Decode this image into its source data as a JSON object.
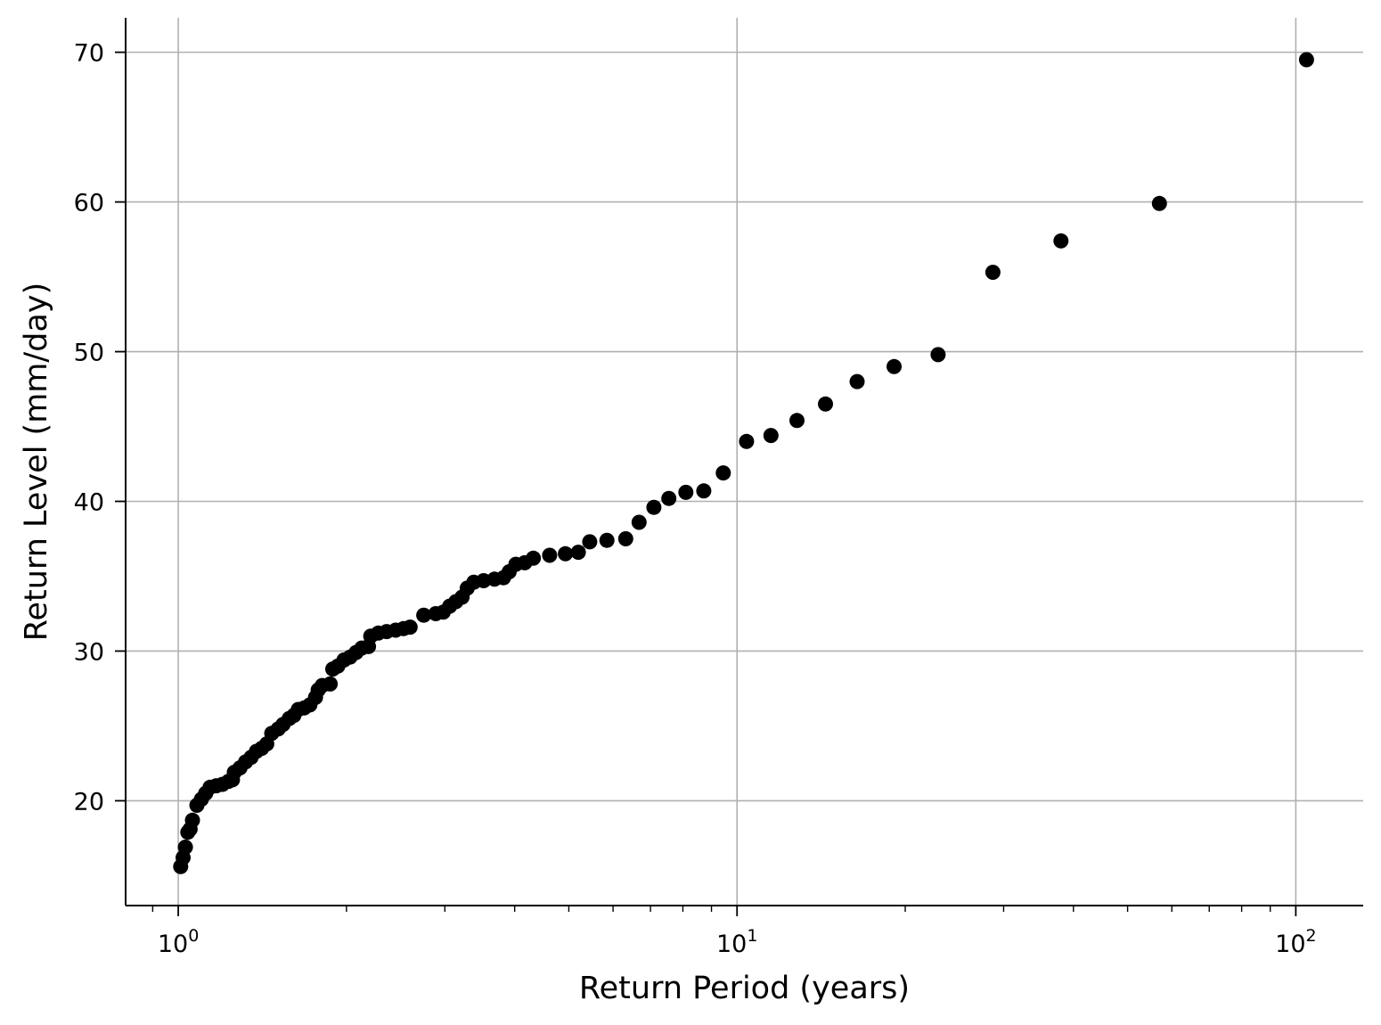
{
  "chart_data": {
    "type": "scatter",
    "xlabel": "Return Period (years)",
    "ylabel": "Return Level (mm/day)",
    "x_scale": "log",
    "xlim": [
      0.805,
      132
    ],
    "ylim": [
      13.0,
      72.3
    ],
    "x_ticks": [
      {
        "value": 1,
        "base": "10",
        "exp": "0"
      },
      {
        "value": 10,
        "base": "10",
        "exp": "1"
      },
      {
        "value": 100,
        "base": "10",
        "exp": "2"
      }
    ],
    "y_ticks": [
      20,
      30,
      40,
      50,
      60,
      70
    ],
    "grid": true,
    "marker_color": "#000000",
    "grid_color": "#b0b0b0",
    "points": [
      {
        "x": 1.01,
        "y": 15.6
      },
      {
        "x": 1.02,
        "y": 16.2
      },
      {
        "x": 1.03,
        "y": 16.9
      },
      {
        "x": 1.04,
        "y": 17.9
      },
      {
        "x": 1.05,
        "y": 18.1
      },
      {
        "x": 1.06,
        "y": 18.7
      },
      {
        "x": 1.08,
        "y": 19.7
      },
      {
        "x": 1.1,
        "y": 20.1
      },
      {
        "x": 1.12,
        "y": 20.5
      },
      {
        "x": 1.14,
        "y": 20.9
      },
      {
        "x": 1.17,
        "y": 21.0
      },
      {
        "x": 1.2,
        "y": 21.1
      },
      {
        "x": 1.23,
        "y": 21.3
      },
      {
        "x": 1.25,
        "y": 21.4
      },
      {
        "x": 1.26,
        "y": 21.9
      },
      {
        "x": 1.29,
        "y": 22.2
      },
      {
        "x": 1.32,
        "y": 22.6
      },
      {
        "x": 1.35,
        "y": 22.9
      },
      {
        "x": 1.38,
        "y": 23.3
      },
      {
        "x": 1.41,
        "y": 23.5
      },
      {
        "x": 1.44,
        "y": 23.8
      },
      {
        "x": 1.47,
        "y": 24.5
      },
      {
        "x": 1.51,
        "y": 24.8
      },
      {
        "x": 1.54,
        "y": 25.1
      },
      {
        "x": 1.58,
        "y": 25.5
      },
      {
        "x": 1.61,
        "y": 25.7
      },
      {
        "x": 1.64,
        "y": 26.1
      },
      {
        "x": 1.68,
        "y": 26.2
      },
      {
        "x": 1.72,
        "y": 26.4
      },
      {
        "x": 1.76,
        "y": 26.9
      },
      {
        "x": 1.78,
        "y": 27.4
      },
      {
        "x": 1.81,
        "y": 27.7
      },
      {
        "x": 1.87,
        "y": 27.8
      },
      {
        "x": 1.89,
        "y": 28.8
      },
      {
        "x": 1.93,
        "y": 29.0
      },
      {
        "x": 1.98,
        "y": 29.4
      },
      {
        "x": 2.03,
        "y": 29.6
      },
      {
        "x": 2.08,
        "y": 29.9
      },
      {
        "x": 2.13,
        "y": 30.2
      },
      {
        "x": 2.19,
        "y": 30.3
      },
      {
        "x": 2.21,
        "y": 31.0
      },
      {
        "x": 2.28,
        "y": 31.2
      },
      {
        "x": 2.36,
        "y": 31.3
      },
      {
        "x": 2.45,
        "y": 31.4
      },
      {
        "x": 2.53,
        "y": 31.5
      },
      {
        "x": 2.6,
        "y": 31.6
      },
      {
        "x": 2.75,
        "y": 32.4
      },
      {
        "x": 2.89,
        "y": 32.5
      },
      {
        "x": 2.98,
        "y": 32.6
      },
      {
        "x": 3.06,
        "y": 33.0
      },
      {
        "x": 3.14,
        "y": 33.3
      },
      {
        "x": 3.22,
        "y": 33.6
      },
      {
        "x": 3.29,
        "y": 34.2
      },
      {
        "x": 3.38,
        "y": 34.6
      },
      {
        "x": 3.52,
        "y": 34.7
      },
      {
        "x": 3.68,
        "y": 34.8
      },
      {
        "x": 3.82,
        "y": 34.9
      },
      {
        "x": 3.91,
        "y": 35.3
      },
      {
        "x": 4.02,
        "y": 35.8
      },
      {
        "x": 4.17,
        "y": 35.9
      },
      {
        "x": 4.32,
        "y": 36.2
      },
      {
        "x": 4.62,
        "y": 36.4
      },
      {
        "x": 4.93,
        "y": 36.5
      },
      {
        "x": 5.2,
        "y": 36.6
      },
      {
        "x": 5.45,
        "y": 37.3
      },
      {
        "x": 5.85,
        "y": 37.4
      },
      {
        "x": 6.32,
        "y": 37.5
      },
      {
        "x": 6.68,
        "y": 38.6
      },
      {
        "x": 7.1,
        "y": 39.6
      },
      {
        "x": 7.55,
        "y": 40.2
      },
      {
        "x": 8.1,
        "y": 40.6
      },
      {
        "x": 8.72,
        "y": 40.7
      },
      {
        "x": 9.45,
        "y": 41.9
      },
      {
        "x": 10.4,
        "y": 44.0
      },
      {
        "x": 11.5,
        "y": 44.4
      },
      {
        "x": 12.8,
        "y": 45.4
      },
      {
        "x": 14.4,
        "y": 46.5
      },
      {
        "x": 16.4,
        "y": 48.0
      },
      {
        "x": 19.1,
        "y": 49.0
      },
      {
        "x": 22.9,
        "y": 49.8
      },
      {
        "x": 28.7,
        "y": 55.3
      },
      {
        "x": 38.0,
        "y": 57.4
      },
      {
        "x": 57.0,
        "y": 59.9
      },
      {
        "x": 104.5,
        "y": 69.5
      }
    ]
  }
}
